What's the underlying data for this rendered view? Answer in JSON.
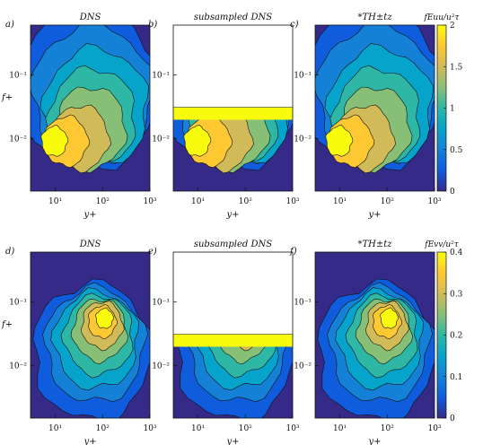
{
  "figure": {
    "colors": {
      "parula": [
        "#352a87",
        "#0f5cdd",
        "#1481d6",
        "#06a4ca",
        "#2eb7a4",
        "#87bf77",
        "#d1bb59",
        "#fec832",
        "#f9fb0e"
      ]
    }
  },
  "chart_data": [
    {
      "type": "heatmap",
      "panel_letter": "a)",
      "title": "DNS",
      "xlabel": "y+",
      "ylabel": "f+",
      "xscale": "log",
      "yscale": "log",
      "xlim": [
        3,
        1000
      ],
      "ylim": [
        0.0015,
        0.6
      ],
      "xticks": [
        "10¹",
        "10²",
        "10³"
      ],
      "yticks": [
        "10⁻¹",
        "10⁻²"
      ],
      "field": "Euu",
      "masked_above_f": null
    },
    {
      "type": "heatmap",
      "panel_letter": "b)",
      "title": "subsampled DNS",
      "xlabel": "y+",
      "xscale": "log",
      "yscale": "log",
      "xlim": [
        3,
        1000
      ],
      "ylim": [
        0.0015,
        0.6
      ],
      "xticks": [
        "10¹",
        "10²",
        "10³"
      ],
      "yticks": [
        "10⁻¹",
        "10⁻²"
      ],
      "field": "Euu",
      "masked_above_f": 0.031
    },
    {
      "type": "heatmap",
      "panel_letter": "c)",
      "title": "*TH±tz",
      "xlabel": "y+",
      "xscale": "log",
      "yscale": "log",
      "xlim": [
        3,
        1000
      ],
      "ylim": [
        0.0015,
        0.6
      ],
      "xticks": [
        "10¹",
        "10²",
        "10³"
      ],
      "yticks": [
        "10⁻¹",
        "10⁻²"
      ],
      "field": "Euu",
      "masked_above_f": null,
      "colorbar": {
        "label": "fEuu/u²τ",
        "ticks": [
          "0",
          "0.5",
          "1",
          "1.5",
          "2"
        ],
        "range": [
          0,
          2
        ]
      }
    },
    {
      "type": "heatmap",
      "panel_letter": "d)",
      "title": "DNS",
      "xlabel": "y+",
      "ylabel": "f+",
      "xscale": "log",
      "yscale": "log",
      "xlim": [
        3,
        1000
      ],
      "ylim": [
        0.0015,
        0.6
      ],
      "xticks": [
        "10¹",
        "10²",
        "10³"
      ],
      "yticks": [
        "10⁻¹",
        "10⁻²"
      ],
      "field": "Evv",
      "masked_above_f": null
    },
    {
      "type": "heatmap",
      "panel_letter": "e)",
      "title": "subsampled DNS",
      "xlabel": "y+",
      "xscale": "log",
      "yscale": "log",
      "xlim": [
        3,
        1000
      ],
      "ylim": [
        0.0015,
        0.6
      ],
      "xticks": [
        "10¹",
        "10²",
        "10³"
      ],
      "yticks": [
        "10⁻¹",
        "10⁻²"
      ],
      "field": "Evv",
      "masked_above_f": 0.031
    },
    {
      "type": "heatmap",
      "panel_letter": "f)",
      "title": "*TH±tz",
      "xlabel": "y+",
      "xscale": "log",
      "yscale": "log",
      "xlim": [
        3,
        1000
      ],
      "ylim": [
        0.0015,
        0.6
      ],
      "xticks": [
        "10¹",
        "10²",
        "10³"
      ],
      "yticks": [
        "10⁻¹",
        "10⁻²"
      ],
      "field": "Evv",
      "masked_above_f": null,
      "colorbar": {
        "label": "fEvv/u²τ",
        "ticks": [
          "0",
          "0.1",
          "0.2",
          "0.3",
          "0.4"
        ],
        "range": [
          0,
          0.4
        ]
      }
    }
  ]
}
